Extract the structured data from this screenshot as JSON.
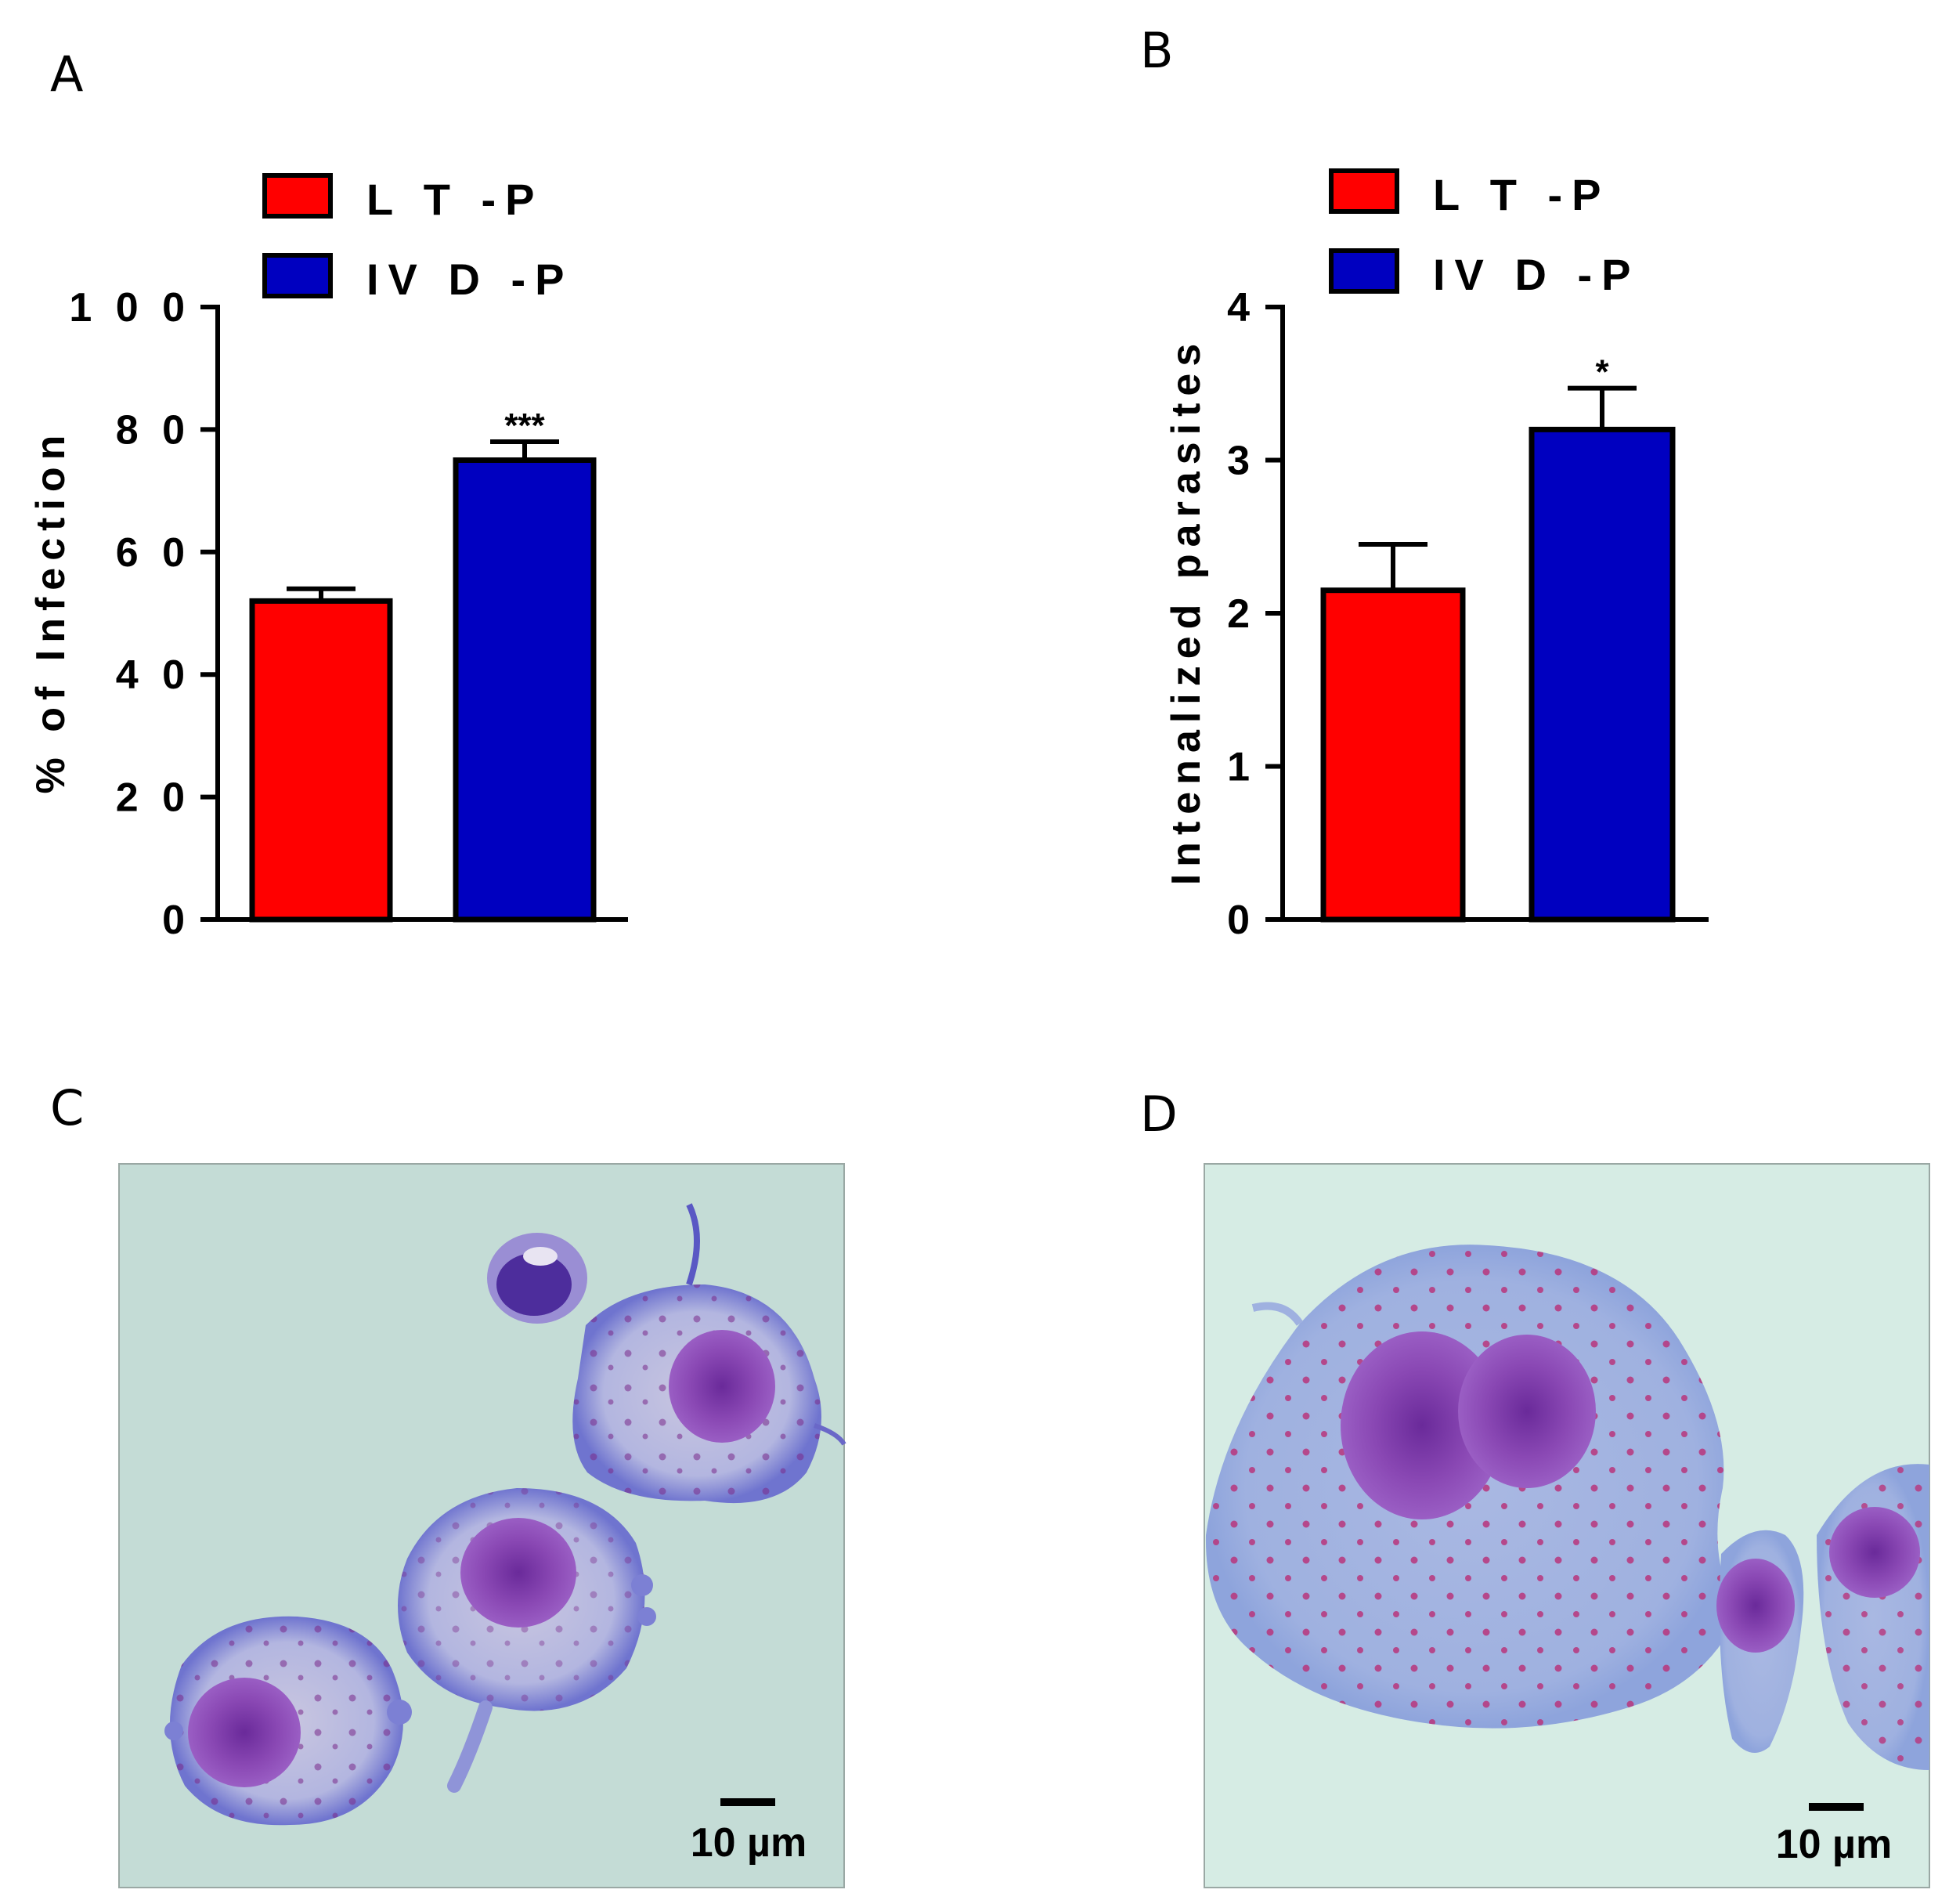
{
  "panels": {
    "a": "A",
    "b": "B",
    "c": "C",
    "d": "D"
  },
  "legend": {
    "items": [
      {
        "label": "L T -P",
        "color": "#ff0000"
      },
      {
        "label": "IV D -P",
        "color": "#0000c0"
      }
    ]
  },
  "chart_data": [
    {
      "type": "bar",
      "panel": "A",
      "categories": [
        "LT-P",
        "IVD-P"
      ],
      "values": [
        52,
        75
      ],
      "errors": [
        2,
        3
      ],
      "colors": [
        "#ff0000",
        "#0000c0"
      ],
      "significance": [
        "",
        "***"
      ],
      "ylabel": "% of Infection",
      "ylim": [
        0,
        100
      ],
      "yticks": [
        0,
        20,
        40,
        60,
        80,
        100
      ],
      "ytick_labels": [
        "0",
        "2 0",
        "4 0",
        "6 0",
        "8 0",
        "1 0 0"
      ]
    },
    {
      "type": "bar",
      "panel": "B",
      "categories": [
        "LT-P",
        "IVD-P"
      ],
      "values": [
        2.15,
        3.2
      ],
      "errors": [
        0.3,
        0.27
      ],
      "colors": [
        "#ff0000",
        "#0000c0"
      ],
      "significance": [
        "",
        "*"
      ],
      "ylabel": "Intenalized parasites",
      "ylim": [
        0,
        4
      ],
      "yticks": [
        0,
        1,
        2,
        3,
        4
      ],
      "ytick_labels": [
        "0",
        "1",
        "2",
        "3",
        "4"
      ]
    }
  ],
  "micrographs": {
    "c": {
      "scale_bar": "10 µm",
      "background": "#c4dcd6"
    },
    "d": {
      "scale_bar": "10 µm",
      "background": "#d6ece4"
    }
  }
}
